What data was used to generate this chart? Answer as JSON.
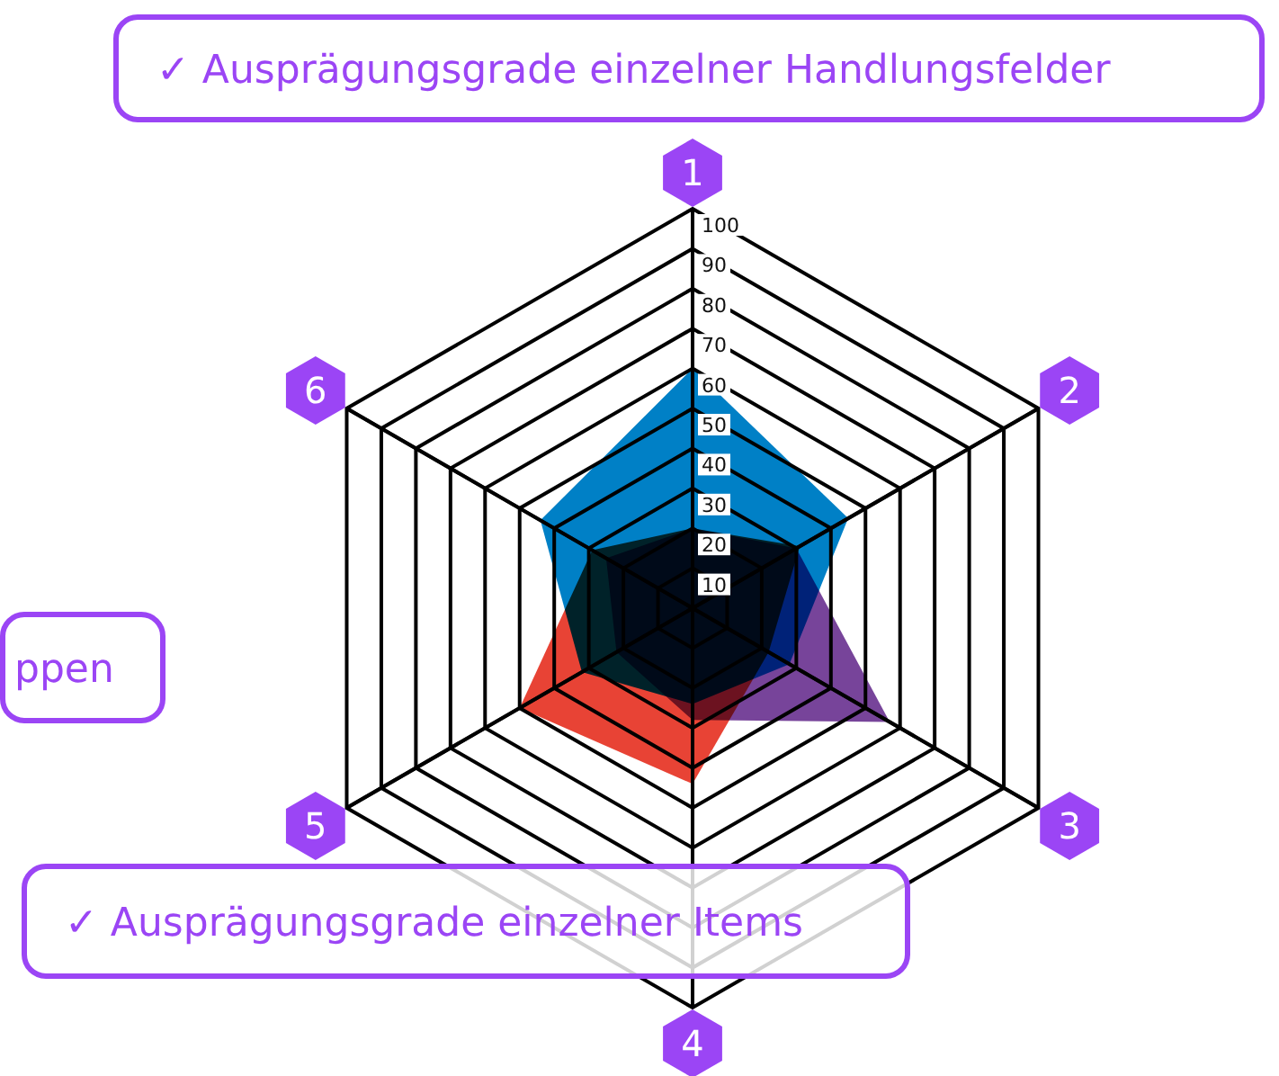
{
  "chart_data": {
    "type": "radar",
    "categories": [
      "1",
      "2",
      "3",
      "4",
      "5",
      "6"
    ],
    "series": [
      {
        "color": "#0080c6",
        "values": [
          60,
          45,
          28,
          24,
          32,
          44
        ]
      },
      {
        "color": "#e84335",
        "values": [
          20,
          31,
          22,
          44,
          50,
          29
        ]
      },
      {
        "color": "#77449a",
        "values": [
          20,
          30,
          57,
          28,
          22,
          25
        ]
      }
    ],
    "ylim": [
      0,
      100
    ],
    "yticks": [
      10,
      20,
      30,
      40,
      50,
      60,
      70,
      80,
      90,
      100
    ],
    "grid": true,
    "annotations": [
      "✓ Ausprägungsgrade einzelner Handlungsfelder",
      "ppen",
      "✓ Ausprägungsgrade einzelner Items"
    ]
  }
}
